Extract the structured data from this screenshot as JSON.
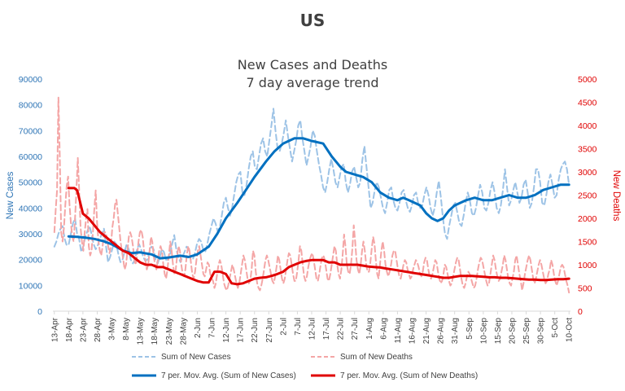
{
  "chart_data": {
    "type": "line",
    "title": "US",
    "subtitle_lines": [
      "New Cases and Deaths",
      "7 day average trend"
    ],
    "ylabel_left": "New Cases",
    "ylabel_right": "New Deaths",
    "ylim_left": [
      0,
      90000
    ],
    "ylim_right": [
      0,
      5000
    ],
    "yticks_left": [
      "0",
      "10000",
      "20000",
      "30000",
      "40000",
      "50000",
      "60000",
      "70000",
      "80000",
      "90000"
    ],
    "yticks_right": [
      "0",
      "500",
      "1000",
      "1500",
      "2000",
      "2500",
      "3000",
      "3500",
      "4000",
      "4500",
      "5000"
    ],
    "x_tick_labels": [
      "13-Apr",
      "18-Apr",
      "23-Apr",
      "28-Apr",
      "3-May",
      "8-May",
      "13-May",
      "18-May",
      "23-May",
      "28-May",
      "2-Jun",
      "7-Jun",
      "12-Jun",
      "17-Jun",
      "22-Jun",
      "27-Jun",
      "2-Jul",
      "7-Jul",
      "12-Jul",
      "17-Jul",
      "22-Jul",
      "27-Jul",
      "1-Aug",
      "6-Aug",
      "11-Aug",
      "16-Aug",
      "21-Aug",
      "26-Aug",
      "31-Aug",
      "5-Sep",
      "10-Sep",
      "15-Sep",
      "20-Sep",
      "25-Sep",
      "30-Sep",
      "5-Oct",
      "10-Oct"
    ],
    "grid": false,
    "legend_position": "bottom",
    "colors": {
      "cases_daily": "#9DC3E6",
      "cases_avg": "#0070C0",
      "deaths_daily": "#F4A6A6",
      "deaths_avg": "#E00000",
      "left_axis": "#2E75B6",
      "right_axis": "#E00000"
    },
    "series": [
      {
        "name": "Sum of New Cases",
        "axis": "left",
        "style": "dashed",
        "values": [
          25000,
          27000,
          30000,
          32000,
          33000,
          28000,
          25500,
          26000,
          30000,
          34000,
          36000,
          30000,
          28000,
          23000,
          25000,
          29000,
          31000,
          33000,
          30000,
          26000,
          24000,
          25500,
          28000,
          30000,
          32000,
          25000,
          19000,
          21000,
          24000,
          27000,
          26000,
          22000,
          19000,
          20000,
          23000,
          26000,
          24000,
          20000,
          18500,
          20000,
          24000,
          26000,
          24000,
          21000,
          19500,
          20000,
          23000,
          25000,
          24000,
          20000,
          18500,
          21000,
          24000,
          23000,
          20000,
          20000,
          22000,
          26000,
          29500,
          24000,
          21000,
          19000,
          21000,
          23000,
          25000,
          24000,
          20000,
          20000,
          22500,
          26000,
          28000,
          27000,
          24000,
          23000,
          26000,
          30000,
          33000,
          36000,
          34000,
          31000,
          32500,
          37000,
          42000,
          44000,
          40000,
          37000,
          40000,
          45000,
          50000,
          53000,
          54000,
          46000,
          45000,
          49000,
          55000,
          60000,
          62000,
          56000,
          55000,
          60000,
          65000,
          67000,
          62000,
          60000,
          66000,
          72000,
          78500,
          70000,
          63000,
          62000,
          65000,
          69000,
          74000,
          68000,
          63000,
          58000,
          62000,
          66000,
          72000,
          74000,
          67000,
          62000,
          56500,
          60000,
          64000,
          70000,
          68000,
          62000,
          57000,
          53000,
          48000,
          46000,
          50000,
          55000,
          59000,
          55000,
          50000,
          48000,
          52000,
          56000,
          57000,
          50000,
          46000,
          49000,
          54000,
          56000,
          52000,
          48000,
          50000,
          58500,
          64000,
          56000,
          48000,
          40000,
          42000,
          47000,
          50000,
          48000,
          44000,
          40000,
          38000,
          42000,
          47000,
          48000,
          43000,
          40000,
          39000,
          42000,
          46000,
          47000,
          43000,
          40000,
          38500,
          41000,
          45000,
          46000,
          42000,
          40000,
          41000,
          45000,
          48000,
          45000,
          40000,
          37000,
          40000,
          46000,
          50500,
          44000,
          36000,
          30000,
          28000,
          33000,
          37000,
          41000,
          42000,
          38000,
          34000,
          33000,
          37000,
          42000,
          46000,
          43000,
          38000,
          37000,
          40000,
          45000,
          49000,
          46000,
          40000,
          39000,
          42000,
          47000,
          50000,
          46000,
          40000,
          38000,
          41000,
          47000,
          55000,
          48000,
          41000,
          43000,
          47000,
          50000,
          46000,
          42000,
          44000,
          49000,
          51000,
          46000,
          40000,
          42000,
          48000,
          55000,
          55000,
          50000,
          42000,
          41000,
          45000,
          50000,
          53000,
          49000,
          44000,
          45000,
          51000,
          55000,
          57000,
          58000,
          55000,
          49000
        ]
      },
      {
        "name": "Sum of New Deaths",
        "axis": "right",
        "style": "dashed",
        "values": [
          1700,
          2200,
          2600,
          4600,
          3300,
          1700,
          1500,
          1800,
          2300,
          2700,
          2900,
          2300,
          1900,
          1600,
          1500,
          2000,
          2600,
          3300,
          2600,
          1800,
          1500,
          1300,
          1700,
          2000,
          2200,
          1400,
          1200,
          1300,
          1700,
          2200,
          2600,
          1900,
          1500,
          1300,
          1200,
          1400,
          1700,
          1700,
          1600,
          1400,
          1250,
          1400,
          1800,
          2000,
          2300,
          2400,
          2100,
          1800,
          1500,
          1300,
          1100,
          900,
          1000,
          1300,
          1600,
          1700,
          1600,
          1400,
          1100,
          1000,
          1200,
          1500,
          1700,
          1750,
          1600,
          1300,
          1100,
          900,
          1000,
          1300,
          1600,
          1500,
          1200,
          1000,
          900,
          1100,
          1300,
          1400,
          1300,
          1000,
          800,
          700,
          900,
          1200,
          1500,
          1300,
          1000,
          800,
          900,
          1200,
          1400,
          1300,
          1000,
          800,
          750,
          900,
          1200,
          1400,
          1300,
          1050,
          800,
          700,
          850,
          1100,
          1300,
          1400,
          1200,
          1000,
          800,
          750,
          900,
          1050,
          1000,
          800,
          700,
          650,
          500,
          600,
          800,
          1000,
          1100,
          1000,
          800,
          600,
          500,
          450,
          550,
          700,
          850,
          1000,
          900,
          750,
          600,
          500,
          600,
          800,
          1000,
          1200,
          1100,
          900,
          700,
          600,
          650,
          900,
          1300,
          1200,
          850,
          600,
          500,
          450,
          550,
          700,
          900,
          1100,
          1200,
          1100,
          950,
          800,
          650,
          600,
          750,
          950,
          1200,
          1100,
          900,
          700,
          600,
          700,
          900,
          1100,
          1250,
          1200,
          1000,
          800,
          650,
          650,
          850,
          1100,
          1400,
          1300,
          1000,
          750,
          650,
          750,
          950,
          1100,
          1200,
          1250,
          1100,
          900,
          700,
          650,
          800,
          1000,
          1150,
          1200,
          1100,
          900,
          700,
          650,
          800,
          1000,
          1200,
          1400,
          1300,
          1000,
          800,
          700,
          900,
          1250,
          1650,
          1400,
          1000,
          850,
          800,
          1000,
          1350,
          1850,
          1500,
          1100,
          900,
          800,
          1000,
          1300,
          1500,
          1300,
          1000,
          850,
          850,
          1050,
          1350,
          1600,
          1450,
          1100,
          800,
          700,
          1000,
          1300,
          1500,
          1300,
          1000,
          850,
          750,
          850,
          1000,
          1200,
          1300,
          1300,
          1100,
          900,
          750,
          700,
          850,
          1000,
          1100,
          1050,
          900,
          800,
          700,
          750,
          900,
          1000,
          1100,
          1050,
          950,
          800,
          750,
          850,
          1050,
          1150,
          1100,
          900,
          750,
          700,
          800,
          950,
          1100,
          1050,
          850,
          700,
          600,
          650,
          800,
          1000,
          950,
          800,
          650,
          550,
          600,
          750,
          900,
          1050,
          1150,
          1100,
          900,
          700,
          550,
          500,
          600,
          750,
          850,
          800,
          700,
          600,
          500,
          550,
          700,
          900,
          1050,
          1150,
          1100,
          950,
          800,
          650,
          550,
          600,
          800,
          1000,
          1200,
          1100,
          900,
          750,
          650,
          700,
          850,
          1000,
          1200,
          1100,
          900,
          700,
          600,
          550,
          700,
          850,
          1100,
          1200,
          1000,
          800,
          650,
          450,
          600,
          800,
          950,
          1100,
          1200,
          1100,
          900,
          700,
          600,
          700,
          850,
          1000,
          1100,
          1000,
          850,
          700,
          600,
          650,
          800,
          900,
          1100,
          1000,
          800,
          650,
          550,
          650,
          800,
          950,
          1000,
          950,
          800,
          650,
          550,
          400
        ]
      },
      {
        "name": "7 per. Mov. Avg. (Sum of New Cases)",
        "axis": "left",
        "style": "solid",
        "x_days": [
          5,
          8,
          11,
          14,
          17,
          20,
          24,
          27,
          30,
          34,
          37,
          40,
          44,
          47,
          50,
          54,
          57,
          60,
          64,
          67,
          70,
          74,
          77,
          80,
          84,
          87,
          90,
          94,
          97,
          100,
          102,
          105,
          108,
          111,
          114,
          117,
          120,
          122,
          124,
          126,
          128,
          130,
          132,
          134,
          136,
          138,
          140,
          142,
          144,
          147,
          150,
          153,
          156,
          159,
          162,
          165,
          168,
          171,
          174,
          177,
          180
        ],
        "values": [
          29000,
          28800,
          28500,
          28000,
          27200,
          26000,
          23500,
          22500,
          22800,
          22000,
          20500,
          20800,
          21500,
          21000,
          22000,
          25000,
          30000,
          36000,
          42000,
          47000,
          52000,
          58000,
          62000,
          65000,
          67000,
          67000,
          66000,
          65000,
          60000,
          56000,
          54000,
          53000,
          52000,
          50000,
          46000,
          44000,
          43000,
          44000,
          43000,
          42000,
          41000,
          38000,
          36000,
          35000,
          36000,
          39000,
          41000,
          42000,
          43000,
          44000,
          43000,
          43000,
          44000,
          45000,
          44000,
          44000,
          45000,
          47000,
          48000,
          49000,
          49000
        ]
      },
      {
        "name": "7 per. Mov. Avg. (Sum of New Deaths)",
        "axis": "right",
        "style": "solid",
        "x_days": [
          5,
          7,
          8,
          10,
          12,
          14,
          16,
          18,
          20,
          22,
          24,
          26,
          28,
          30,
          32,
          34,
          36,
          38,
          40,
          42,
          44,
          46,
          48,
          50,
          52,
          54,
          56,
          58,
          60,
          62,
          64,
          66,
          68,
          70,
          72,
          74,
          76,
          78,
          80,
          82,
          84,
          86,
          88,
          90,
          92,
          94,
          96,
          98,
          100,
          102,
          104,
          106,
          108,
          110,
          112,
          114,
          116,
          118,
          120,
          122,
          124,
          126,
          128,
          130,
          132,
          134,
          136,
          138,
          140,
          142,
          144,
          146,
          148,
          150,
          152,
          154,
          156,
          158,
          160,
          162,
          164,
          166,
          168,
          170,
          172,
          174,
          176,
          178,
          180
        ],
        "values": [
          2650,
          2650,
          2600,
          2100,
          2000,
          1850,
          1700,
          1600,
          1500,
          1400,
          1300,
          1250,
          1150,
          1050,
          1000,
          1000,
          950,
          950,
          900,
          850,
          800,
          750,
          700,
          650,
          620,
          620,
          850,
          850,
          800,
          600,
          580,
          600,
          650,
          700,
          720,
          730,
          760,
          800,
          850,
          950,
          1000,
          1050,
          1080,
          1100,
          1100,
          1100,
          1050,
          1050,
          1000,
          1000,
          1000,
          1000,
          980,
          960,
          950,
          940,
          920,
          900,
          880,
          860,
          840,
          820,
          800,
          780,
          760,
          740,
          720,
          720,
          740,
          760,
          760,
          760,
          750,
          740,
          730,
          730,
          720,
          720,
          710,
          700,
          690,
          680,
          680,
          670,
          670,
          680,
          690,
          690,
          700
        ]
      }
    ]
  }
}
